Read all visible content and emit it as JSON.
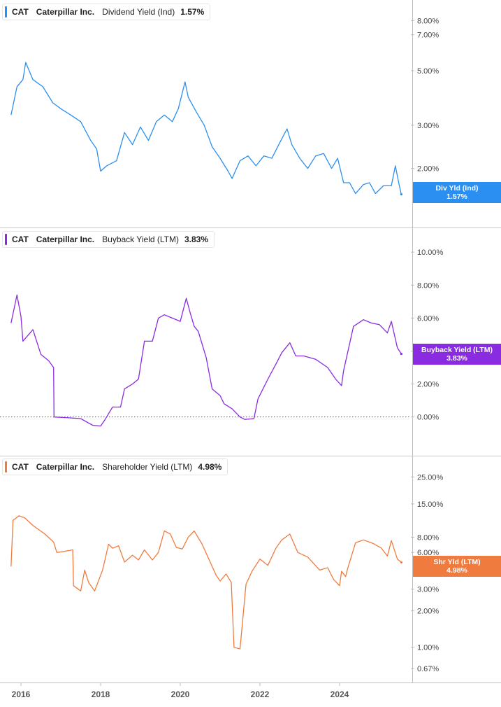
{
  "x_axis": {
    "tick_labels": [
      "2016",
      "2018",
      "2020",
      "2022",
      "2024"
    ]
  },
  "chart_data": [
    {
      "type": "line",
      "ticker": "CAT",
      "company": "Caterpillar Inc.",
      "metric": "Dividend Yield (Ind)",
      "value_label": "1.57%",
      "tag_label": "Div Yld (Ind)",
      "color": "#2a8ff0",
      "y_scale": "log",
      "y_range": [
        1.4,
        9.2
      ],
      "y_ticks": [
        2,
        3,
        5,
        7,
        8
      ],
      "y_tick_labels": [
        "2.00%",
        "3.00%",
        "5.00%",
        "7.00%",
        "8.00%"
      ],
      "x_range": [
        2015.75,
        2025.6
      ],
      "series": [
        {
          "name": "Dividend Yield (Ind)",
          "x": [
            2015.75,
            2015.9,
            2016.05,
            2016.12,
            2016.3,
            2016.55,
            2016.8,
            2017.0,
            2017.25,
            2017.5,
            2017.75,
            2017.9,
            2018.0,
            2018.15,
            2018.4,
            2018.6,
            2018.8,
            2019.0,
            2019.2,
            2019.4,
            2019.6,
            2019.8,
            2019.95,
            2020.12,
            2020.2,
            2020.4,
            2020.6,
            2020.8,
            2021.0,
            2021.2,
            2021.3,
            2021.5,
            2021.7,
            2021.9,
            2022.1,
            2022.3,
            2022.5,
            2022.68,
            2022.8,
            2023.0,
            2023.2,
            2023.4,
            2023.6,
            2023.8,
            2023.95,
            2024.1,
            2024.25,
            2024.4,
            2024.6,
            2024.75,
            2024.9,
            2025.1,
            2025.3,
            2025.4,
            2025.5,
            2025.55
          ],
          "y": [
            3.3,
            4.3,
            4.6,
            5.4,
            4.6,
            4.3,
            3.7,
            3.5,
            3.3,
            3.1,
            2.6,
            2.4,
            1.95,
            2.05,
            2.15,
            2.8,
            2.5,
            2.95,
            2.6,
            3.1,
            3.3,
            3.1,
            3.5,
            4.5,
            3.9,
            3.4,
            3.0,
            2.45,
            2.2,
            1.95,
            1.82,
            2.15,
            2.25,
            2.05,
            2.25,
            2.2,
            2.55,
            2.9,
            2.5,
            2.2,
            2.0,
            2.25,
            2.3,
            2.0,
            2.2,
            1.75,
            1.75,
            1.58,
            1.72,
            1.75,
            1.58,
            1.7,
            1.7,
            2.05,
            1.7,
            1.57
          ]
        }
      ]
    },
    {
      "type": "line",
      "ticker": "CAT",
      "company": "Caterpillar Inc.",
      "metric": "Buyback Yield (LTM)",
      "value_label": "3.83%",
      "tag_label": "Buyback Yield (LTM)",
      "color": "#8a2be2",
      "y_scale": "linear",
      "y_range": [
        -1.5,
        10.9
      ],
      "y_ticks": [
        0,
        2,
        4,
        6,
        8,
        10
      ],
      "y_tick_labels": [
        "0.00%",
        "2.00%",
        "",
        "6.00%",
        "8.00%",
        "10.00%"
      ],
      "zero_line": true,
      "x_range": [
        2015.75,
        2025.6
      ],
      "series": [
        {
          "name": "Buyback Yield (LTM)",
          "x": [
            2015.75,
            2015.9,
            2016.0,
            2016.05,
            2016.3,
            2016.5,
            2016.7,
            2016.82,
            2016.83,
            2017.2,
            2017.5,
            2017.8,
            2018.0,
            2018.1,
            2018.3,
            2018.5,
            2018.6,
            2018.8,
            2018.95,
            2019.1,
            2019.3,
            2019.45,
            2019.6,
            2019.8,
            2020.0,
            2020.15,
            2020.25,
            2020.35,
            2020.45,
            2020.65,
            2020.8,
            2021.0,
            2021.1,
            2021.3,
            2021.5,
            2021.62,
            2021.85,
            2021.95,
            2022.2,
            2022.4,
            2022.55,
            2022.75,
            2022.9,
            2023.1,
            2023.4,
            2023.7,
            2023.9,
            2024.05,
            2024.1,
            2024.35,
            2024.6,
            2024.8,
            2025.0,
            2025.2,
            2025.3,
            2025.45,
            2025.55
          ],
          "y": [
            5.7,
            7.4,
            6.1,
            4.6,
            5.3,
            3.8,
            3.4,
            3.0,
            0.0,
            -0.05,
            -0.1,
            -0.5,
            -0.55,
            -0.2,
            0.6,
            0.6,
            1.7,
            2.0,
            2.3,
            4.6,
            4.6,
            6.0,
            6.2,
            6.0,
            5.8,
            7.2,
            6.3,
            5.5,
            5.2,
            3.6,
            1.7,
            1.3,
            0.8,
            0.5,
            0.0,
            -0.15,
            -0.1,
            1.1,
            2.3,
            3.2,
            3.9,
            4.5,
            3.7,
            3.7,
            3.5,
            3.0,
            2.3,
            1.9,
            2.8,
            5.5,
            5.9,
            5.7,
            5.6,
            5.1,
            5.8,
            4.2,
            3.83
          ]
        }
      ]
    },
    {
      "type": "line",
      "ticker": "CAT",
      "company": "Caterpillar Inc.",
      "metric": "Shareholder Yield (LTM)",
      "value_label": "4.98%",
      "tag_label": "Shr Yld (LTM)",
      "color": "#f07b3f",
      "y_scale": "log",
      "y_range": [
        0.67,
        31
      ],
      "y_ticks": [
        0.67,
        1,
        2,
        3,
        6,
        8,
        15,
        25
      ],
      "y_tick_labels": [
        "0.67%",
        "1.00%",
        "2.00%",
        "3.00%",
        "6.00%",
        "8.00%",
        "15.00%",
        "25.00%"
      ],
      "x_range": [
        2015.75,
        2025.6
      ],
      "series": [
        {
          "name": "Shareholder Yield (LTM)",
          "x": [
            2015.75,
            2015.8,
            2015.95,
            2016.1,
            2016.3,
            2016.6,
            2016.82,
            2016.9,
            2017.05,
            2017.3,
            2017.32,
            2017.5,
            2017.6,
            2017.7,
            2017.85,
            2018.05,
            2018.2,
            2018.3,
            2018.45,
            2018.6,
            2018.8,
            2018.95,
            2019.1,
            2019.3,
            2019.45,
            2019.6,
            2019.75,
            2019.9,
            2020.05,
            2020.2,
            2020.35,
            2020.55,
            2020.75,
            2020.9,
            2021.0,
            2021.15,
            2021.28,
            2021.35,
            2021.5,
            2021.65,
            2021.8,
            2022.0,
            2022.2,
            2022.4,
            2022.55,
            2022.75,
            2022.95,
            2023.2,
            2023.5,
            2023.7,
            2023.85,
            2024.0,
            2024.05,
            2024.15,
            2024.2,
            2024.4,
            2024.6,
            2024.85,
            2025.05,
            2025.2,
            2025.3,
            2025.45,
            2025.55
          ],
          "y": [
            4.6,
            11.0,
            12.0,
            11.5,
            10.0,
            8.5,
            7.3,
            6.0,
            6.1,
            6.3,
            3.2,
            2.9,
            4.3,
            3.4,
            2.9,
            4.3,
            7.0,
            6.5,
            6.8,
            5.0,
            5.7,
            5.2,
            6.3,
            5.2,
            6.0,
            9.0,
            8.5,
            6.6,
            6.4,
            8.0,
            9.0,
            7.0,
            5.0,
            3.9,
            3.5,
            4.0,
            3.4,
            1.0,
            0.97,
            3.3,
            4.2,
            5.3,
            4.7,
            6.5,
            7.6,
            8.5,
            6.0,
            5.5,
            4.3,
            4.5,
            3.6,
            3.2,
            4.2,
            3.8,
            4.4,
            7.2,
            7.6,
            7.1,
            6.5,
            5.6,
            7.5,
            5.3,
            4.98
          ]
        }
      ]
    }
  ]
}
